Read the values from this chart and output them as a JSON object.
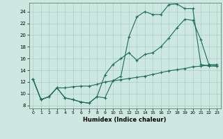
{
  "xlabel": "Humidex (Indice chaleur)",
  "bg_color": "#cce8e0",
  "grid_color": "#aaccc4",
  "line_color": "#1a6b5a",
  "xlim": [
    -0.5,
    23.5
  ],
  "ylim": [
    7.5,
    25.5
  ],
  "xticks": [
    0,
    1,
    2,
    3,
    4,
    5,
    6,
    7,
    8,
    9,
    10,
    11,
    12,
    13,
    14,
    15,
    16,
    17,
    18,
    19,
    20,
    21,
    22,
    23
  ],
  "yticks": [
    8,
    10,
    12,
    14,
    16,
    18,
    20,
    22,
    24
  ],
  "line1_x": [
    0,
    1,
    2,
    3,
    4,
    5,
    6,
    7,
    8,
    9,
    10,
    11,
    12,
    13,
    14,
    15,
    16,
    17,
    18,
    19,
    20,
    21,
    22,
    23
  ],
  "line1_y": [
    12.5,
    9.0,
    9.5,
    11.0,
    9.3,
    9.0,
    8.6,
    8.4,
    9.5,
    9.3,
    12.2,
    13.0,
    19.7,
    23.1,
    24.0,
    23.5,
    23.5,
    25.2,
    25.3,
    24.5,
    24.5,
    15.0,
    14.7,
    14.7
  ],
  "line2_x": [
    0,
    1,
    2,
    3,
    4,
    5,
    6,
    7,
    8,
    9,
    10,
    11,
    12,
    13,
    14,
    15,
    16,
    17,
    18,
    19,
    20,
    21,
    22,
    23
  ],
  "line2_y": [
    12.5,
    9.0,
    9.5,
    11.0,
    9.3,
    9.0,
    8.6,
    8.4,
    9.5,
    13.2,
    15.0,
    16.0,
    17.0,
    15.7,
    16.7,
    17.0,
    18.0,
    19.5,
    21.2,
    22.7,
    22.5,
    19.2,
    15.0,
    14.7
  ],
  "line3_x": [
    0,
    1,
    2,
    3,
    4,
    5,
    6,
    7,
    8,
    9,
    10,
    11,
    12,
    13,
    14,
    15,
    16,
    17,
    18,
    19,
    20,
    21,
    22,
    23
  ],
  "line3_y": [
    12.5,
    9.0,
    9.5,
    11.0,
    11.0,
    11.2,
    11.3,
    11.3,
    11.6,
    12.0,
    12.2,
    12.4,
    12.6,
    12.8,
    13.0,
    13.3,
    13.6,
    13.9,
    14.1,
    14.3,
    14.6,
    14.7,
    14.9,
    15.0
  ]
}
